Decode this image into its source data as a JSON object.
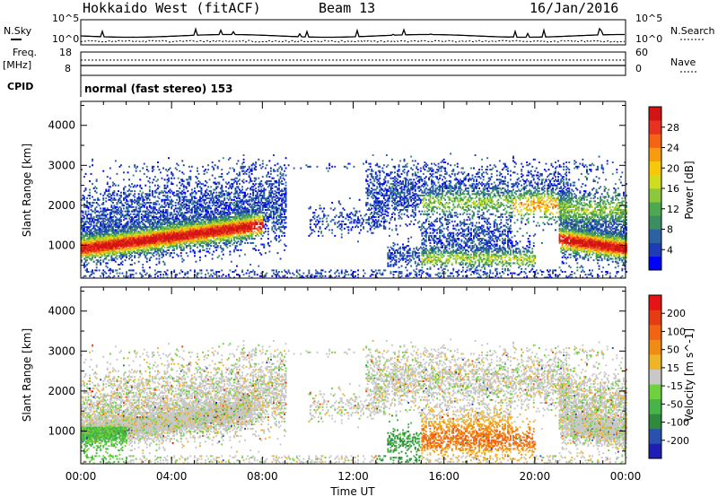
{
  "header": {
    "station": "Hokkaido West (fitACF)",
    "beam": "Beam 13",
    "date": "16/Jan/2016"
  },
  "strip": {
    "nsky_label": "N.Sky",
    "nsearch_label": "N.Search",
    "noise_ticks": [
      "10^5",
      "10^0"
    ],
    "noise_ticks_right": [
      "10^5",
      "10^0"
    ],
    "freq_label": "Freq.",
    "freq_unit": "[MHz]",
    "freq_ticks": [
      "18",
      "8"
    ],
    "nave_label": "Nave",
    "nave_ticks": [
      "60",
      "0"
    ],
    "cpid_label": "CPID",
    "cpid_value": "normal (fast stereo) 153"
  },
  "chart_data": [
    {
      "type": "heatmap",
      "panel": "power",
      "ylabel": "Slant Range [km]",
      "yticks": [
        "1000",
        "2000",
        "3000",
        "4000"
      ],
      "ylim": [
        180,
        4600
      ],
      "xticks": [
        "00:00",
        "04:00",
        "08:00",
        "12:00",
        "16:00",
        "20:00",
        "00:00"
      ],
      "xlim": [
        0,
        24
      ],
      "colorbar": {
        "label": "Power [dB]",
        "ticks": [
          "4",
          "8",
          "12",
          "16",
          "20",
          "24",
          "28"
        ],
        "colors": [
          "#0000ff",
          "#1e3cb4",
          "#2b62a2",
          "#3c8c64",
          "#4ea850",
          "#8cc83c",
          "#d2dc1e",
          "#f5c80a",
          "#f79b0f",
          "#f56414",
          "#e6321e",
          "#d21414"
        ]
      }
    },
    {
      "type": "heatmap",
      "panel": "velocity",
      "ylabel": "Slant Range [km]",
      "yticks": [
        "1000",
        "2000",
        "3000",
        "4000"
      ],
      "ylim": [
        180,
        4600
      ],
      "xticks": [
        "00:00",
        "04:00",
        "08:00",
        "12:00",
        "16:00",
        "20:00",
        "00:00"
      ],
      "xlim": [
        0,
        24
      ],
      "xlabel": "Time UT",
      "colorbar": {
        "label": "Velocity [m s^-1]",
        "ticks": [
          "200",
          "100",
          "50",
          "15",
          "-15",
          "-50",
          "-100",
          "-200"
        ],
        "colors": [
          "#1e1eb4",
          "#2a50b0",
          "#2e8a3c",
          "#46b446",
          "#6ed23c",
          "#c8c8c8",
          "#f0b428",
          "#f08c14",
          "#f06414",
          "#e63c14",
          "#e61414"
        ]
      }
    }
  ]
}
